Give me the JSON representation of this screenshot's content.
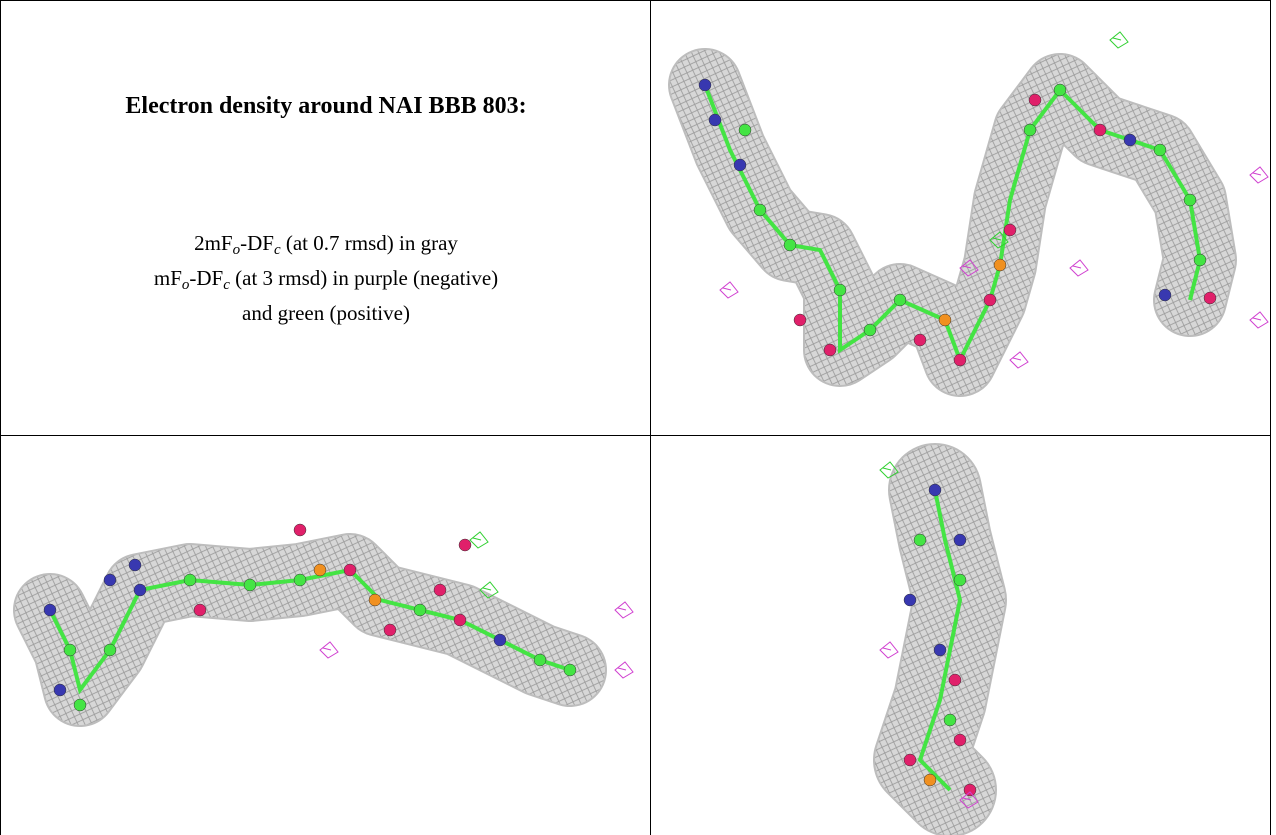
{
  "title": "Electron density around NAI BBB 803:",
  "legend": {
    "lines": [
      [
        "2mF",
        "o",
        "-DF",
        "c",
        " (at 0.7 rmsd) in gray"
      ],
      [
        "mF",
        "o",
        "-DF",
        "c",
        " (at 3 rmsd) in purple (negative)"
      ],
      [
        "and green (positive)"
      ]
    ]
  }
}
